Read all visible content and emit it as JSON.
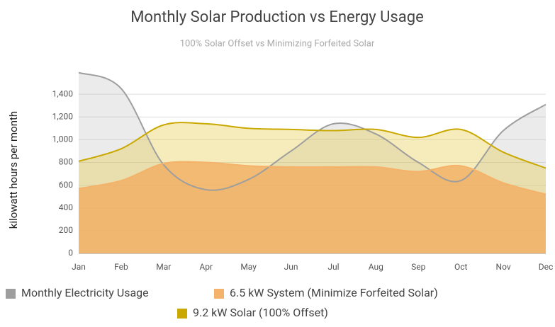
{
  "chart_data": {
    "type": "area",
    "title": "Monthly Solar Production vs Energy Usage",
    "subtitle": "100% Solar Offset vs Minimizing Forfeited Solar",
    "y_label": "kilowatt hours per month",
    "categories": [
      "Jan",
      "Feb",
      "Mar",
      "Apr",
      "May",
      "Jun",
      "Jul",
      "Aug",
      "Sep",
      "Oct",
      "Nov",
      "Dec"
    ],
    "series": [
      {
        "name": "Monthly Electricity Usage",
        "color": "#9e9e9e",
        "values": [
          1590,
          1450,
          780,
          560,
          650,
          900,
          1140,
          1050,
          800,
          640,
          1080,
          1310
        ]
      },
      {
        "name": "6.5 kW System (Minimize Forfeited Solar)",
        "color": "#f4b26a",
        "values": [
          570,
          640,
          790,
          800,
          770,
          760,
          760,
          760,
          720,
          770,
          620,
          520
        ]
      },
      {
        "name": "9.2 kW Solar (100% Offset)",
        "color": "#c9a800",
        "values": [
          810,
          920,
          1130,
          1140,
          1100,
          1090,
          1080,
          1090,
          1020,
          1090,
          890,
          750
        ]
      }
    ],
    "ylim": [
      0,
      1600
    ],
    "yticks": [
      0,
      200,
      400,
      600,
      800,
      {
        "value": 1000,
        "label": "1,000"
      },
      {
        "value": 1200,
        "label": "1,200"
      },
      {
        "value": 1400,
        "label": "1,400"
      }
    ],
    "grid": true
  }
}
